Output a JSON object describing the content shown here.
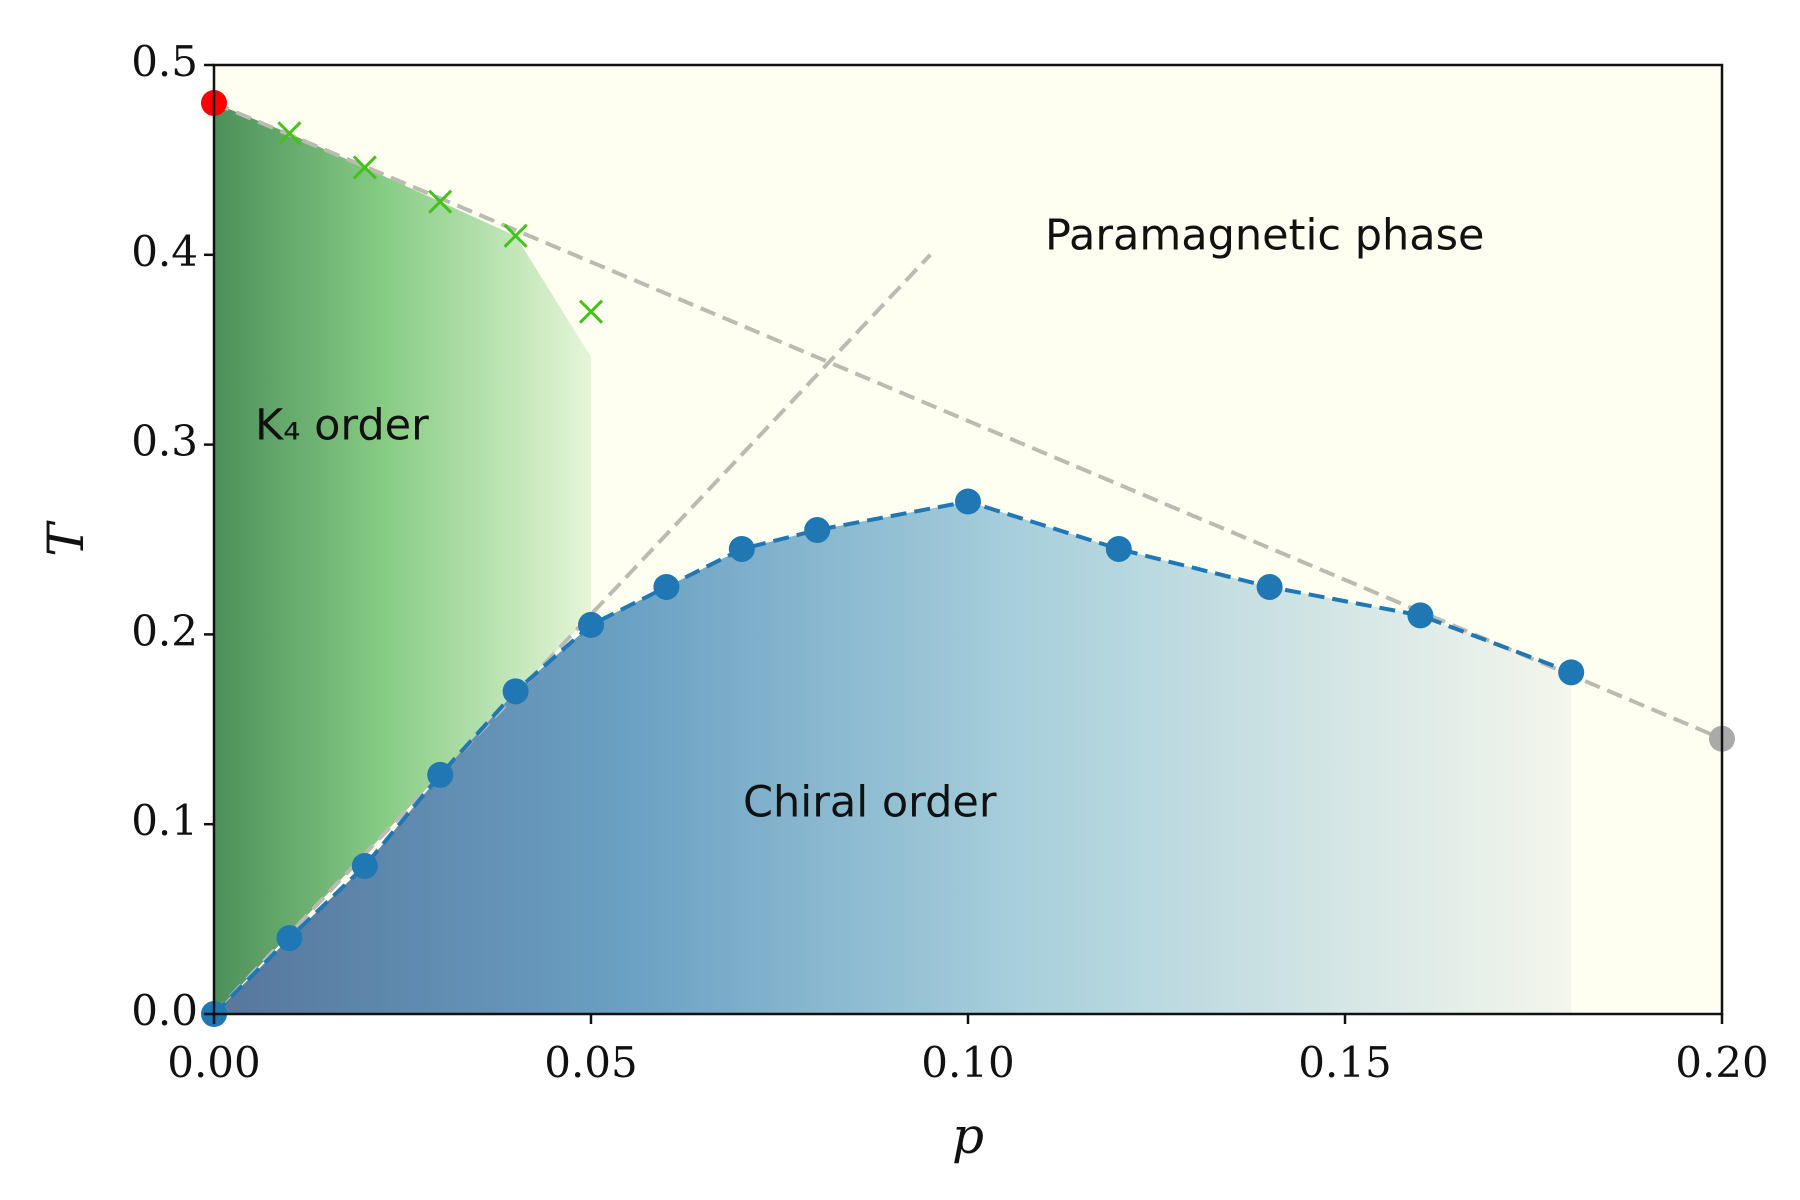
{
  "chart_data": {
    "type": "line",
    "xlabel": "p",
    "ylabel": "T",
    "xlim": [
      0,
      0.2
    ],
    "ylim": [
      0,
      0.5
    ],
    "xticks": [
      {
        "value": 0,
        "label": "0.00"
      },
      0.05,
      {
        "value": 0.1,
        "label": "0.10"
      },
      0.15,
      {
        "value": 0.2,
        "label": "0.20"
      }
    ],
    "yticks": [
      {
        "value": 0,
        "label": "0.0"
      },
      0.1,
      0.2,
      0.3,
      0.4,
      0.5
    ],
    "background": "#fefff0",
    "series": [
      {
        "color": "#1f77b4",
        "marker": "o",
        "line": "dashed",
        "x": [
          0,
          0.01,
          0.02,
          0.03,
          0.04,
          0.05,
          0.06,
          0.07,
          0.08,
          0.1,
          0.12,
          0.14,
          0.16,
          0.18
        ],
        "values": [
          0,
          0.04,
          0.078,
          0.126,
          0.17,
          0.205,
          0.225,
          0.245,
          0.255,
          0.27,
          0.245,
          0.225,
          0.21,
          0.18
        ]
      },
      {
        "color": "#44c21a",
        "marker": "x",
        "line": "none",
        "x": [
          0.01,
          0.02,
          0.03,
          0.04,
          0.05
        ],
        "values": [
          0.464,
          0.446,
          0.428,
          0.41,
          0.37
        ]
      },
      {
        "color": "#bbbbb4",
        "marker": "none",
        "line": "dashed",
        "x": [
          0,
          0.2
        ],
        "values": [
          0.48,
          0.145
        ]
      },
      {
        "color": "#bbbbb4",
        "marker": "none",
        "line": "dashed",
        "x": [
          0,
          0.095
        ],
        "values": [
          0,
          0.4
        ]
      },
      {
        "color": "#ff0000",
        "marker": "o",
        "line": "none",
        "x": [
          0
        ],
        "values": [
          0.48
        ]
      },
      {
        "color": "#aaaaaa",
        "marker": "o",
        "line": "none",
        "x": [
          0.2
        ],
        "values": [
          0.145
        ]
      }
    ],
    "annotations": [
      "Paramagnetic phase",
      "K₄ order",
      "Chiral order"
    ]
  }
}
